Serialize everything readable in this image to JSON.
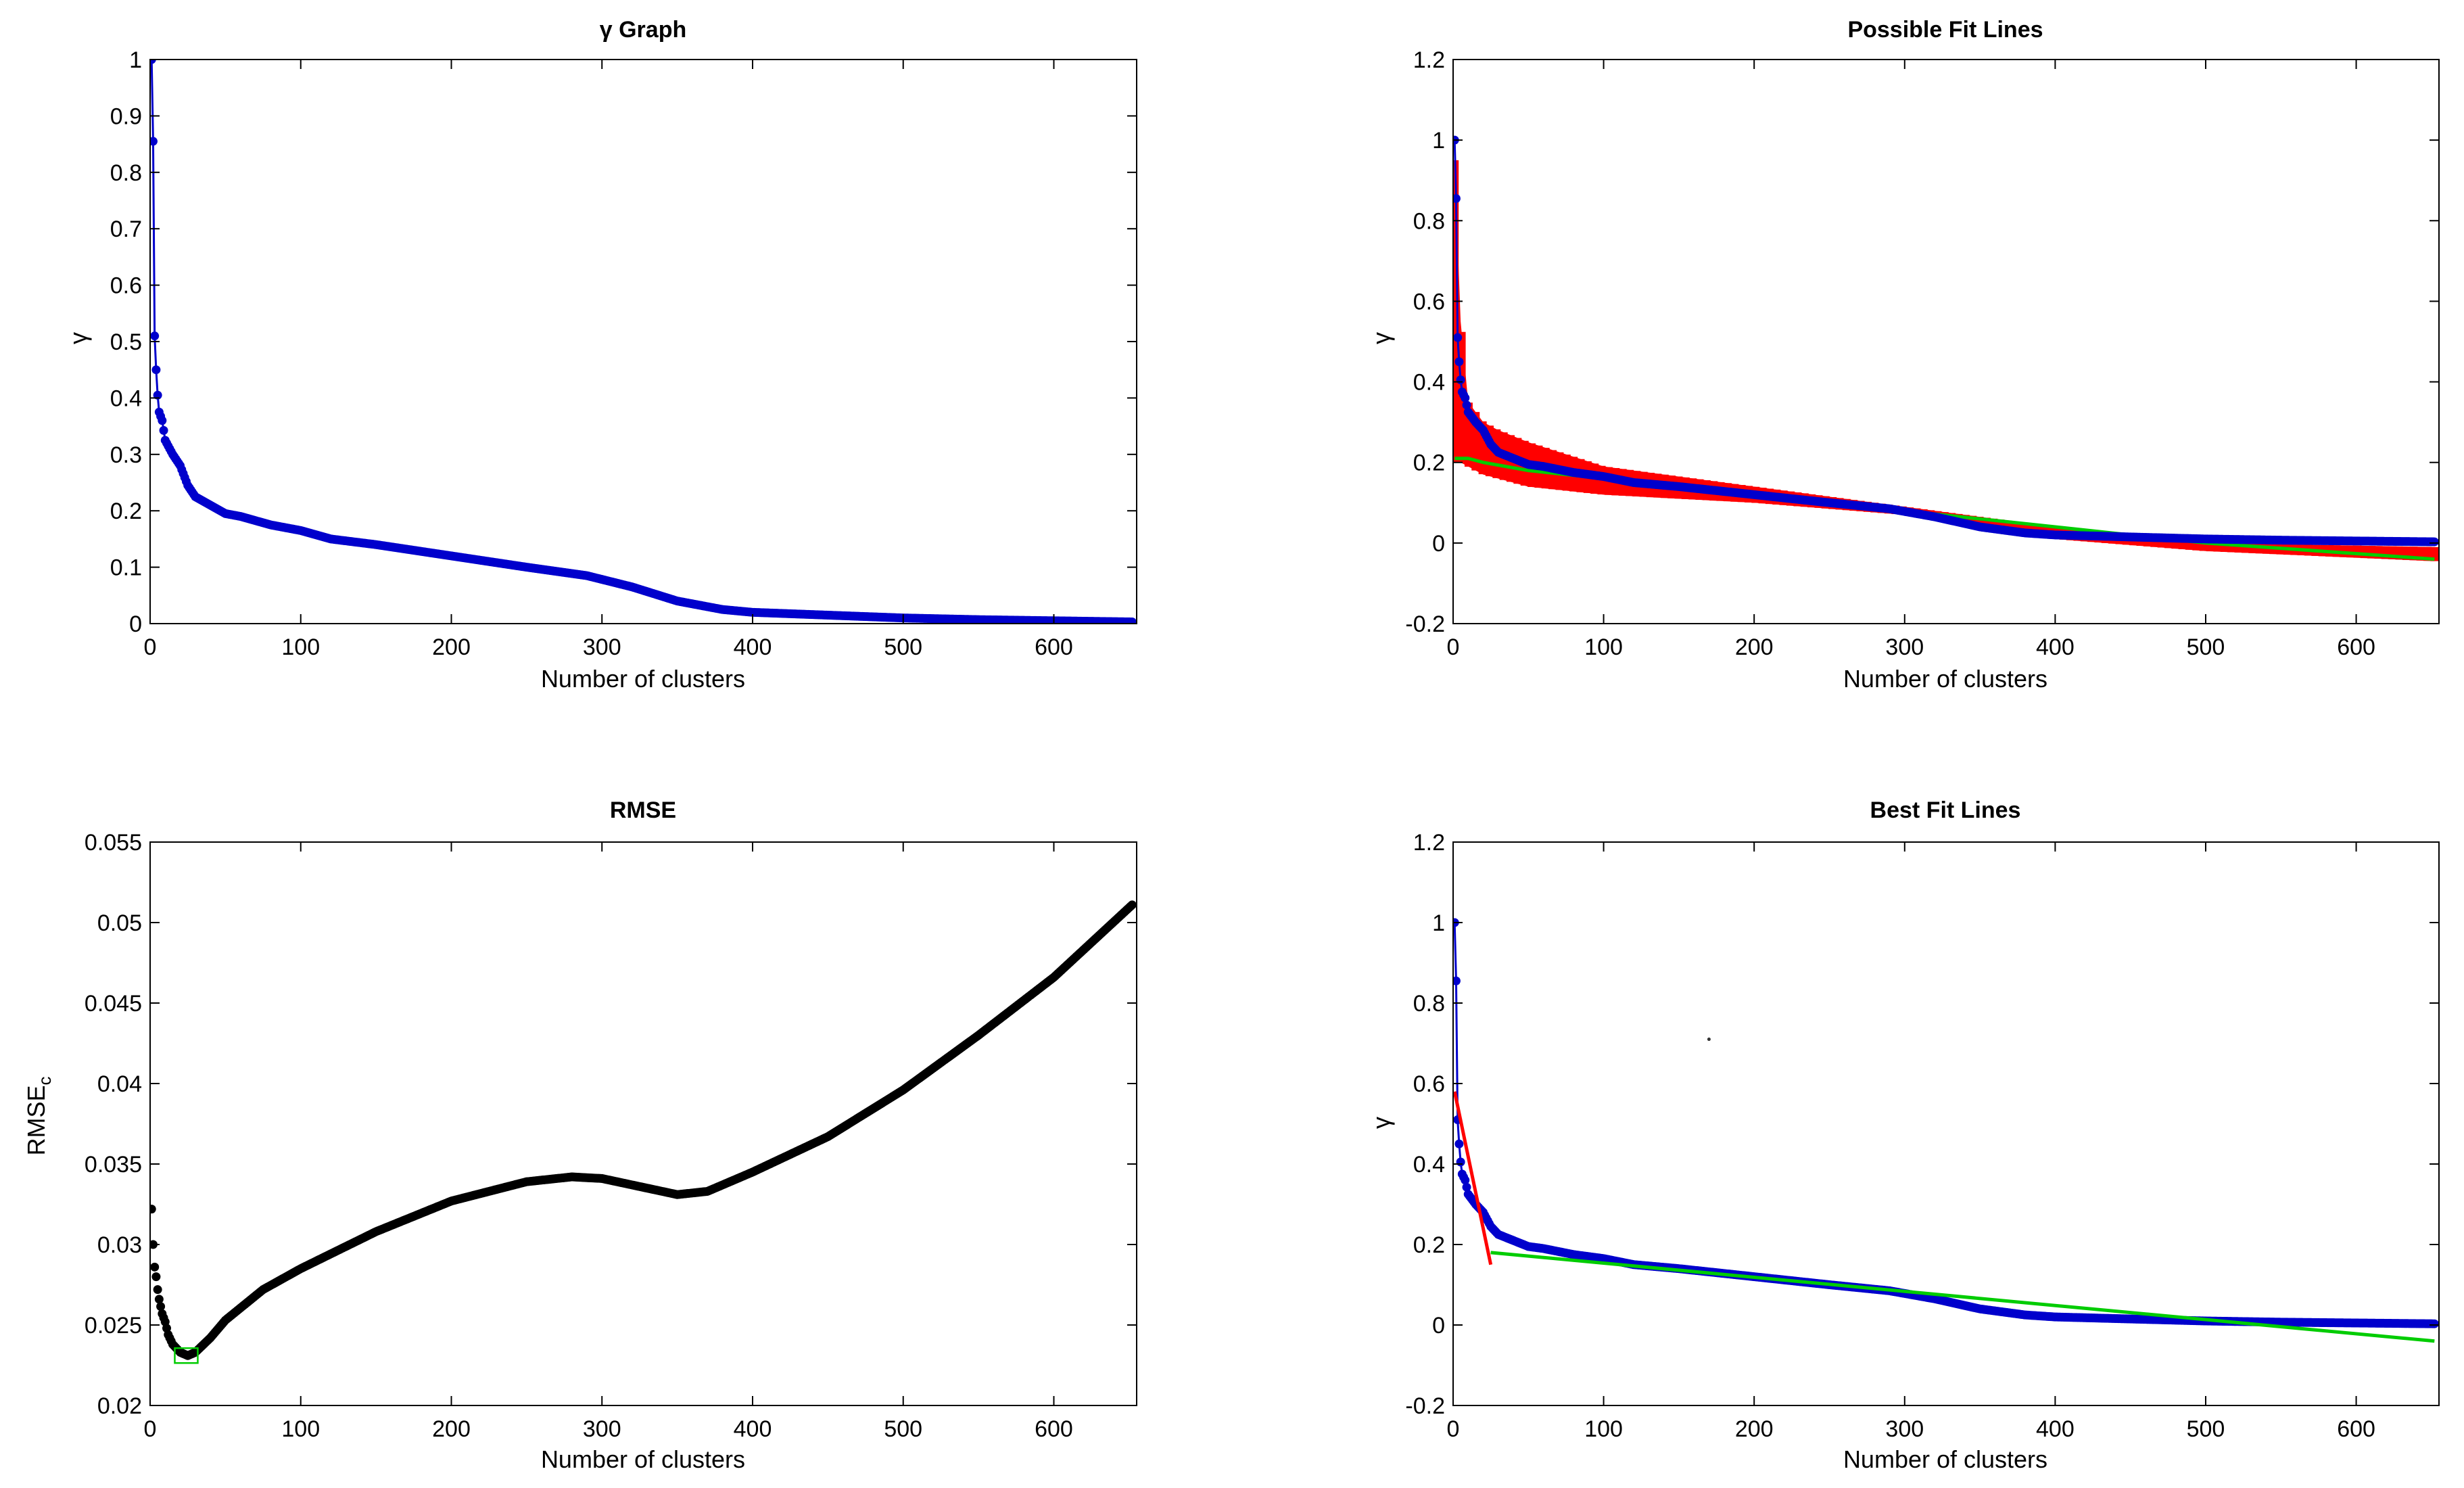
{
  "figure": {
    "background": "#ffffff",
    "axis_color": "#000000"
  },
  "chart_data": [
    {
      "type": "scatter",
      "title": "γ Graph",
      "xlabel": "Number of clusters",
      "ylabel": "γ",
      "xlim": [
        0,
        655
      ],
      "ylim": [
        0,
        1
      ],
      "xticks": [
        0,
        100,
        200,
        300,
        400,
        500,
        600
      ],
      "yticks": [
        0,
        0.1,
        0.2,
        0.3,
        0.4,
        0.5,
        0.6,
        0.7,
        0.8,
        0.9,
        1
      ],
      "grid": false,
      "series": [
        {
          "name": "γ",
          "kind": "line-markers",
          "color": "#0000cc",
          "dense": true,
          "x": [
            1,
            2,
            3,
            4,
            5,
            6,
            8,
            10,
            12,
            15,
            20,
            25,
            30,
            40,
            50,
            60,
            80,
            100,
            120,
            150,
            200,
            250,
            290,
            320,
            350,
            380,
            400,
            450,
            500,
            550,
            600,
            652
          ],
          "y": [
            1.0,
            0.855,
            0.51,
            0.45,
            0.405,
            0.375,
            0.36,
            0.325,
            0.315,
            0.3,
            0.28,
            0.245,
            0.225,
            0.21,
            0.195,
            0.19,
            0.175,
            0.165,
            0.15,
            0.14,
            0.12,
            0.1,
            0.085,
            0.065,
            0.04,
            0.025,
            0.02,
            0.015,
            0.01,
            0.007,
            0.005,
            0.003
          ]
        }
      ]
    },
    {
      "type": "line",
      "title": "Possible Fit Lines",
      "xlabel": "Number of clusters",
      "ylabel": "γ",
      "xlim": [
        0,
        655
      ],
      "ylim": [
        -0.2,
        1.2
      ],
      "xticks": [
        0,
        100,
        200,
        300,
        400,
        500,
        600
      ],
      "yticks": [
        -0.2,
        0,
        0.2,
        0.4,
        0.6,
        0.8,
        1,
        1.2
      ],
      "grid": false,
      "series": [
        {
          "name": "fit lines band",
          "kind": "band",
          "color": "#ff0000",
          "x": [
            1,
            5,
            10,
            20,
            30,
            50,
            100,
            200,
            300,
            400,
            500,
            652
          ],
          "upper": [
            0.95,
            0.55,
            0.35,
            0.3,
            0.28,
            0.25,
            0.19,
            0.14,
            0.09,
            0.04,
            0.0,
            -0.01
          ],
          "lower": [
            0.2,
            0.2,
            0.19,
            0.17,
            0.16,
            0.14,
            0.12,
            0.1,
            0.07,
            0.01,
            -0.02,
            -0.045
          ]
        },
        {
          "name": "fit line green",
          "kind": "line",
          "color": "#00cc00",
          "x": [
            1,
            10,
            20,
            50,
            100,
            200,
            300,
            400,
            500,
            652
          ],
          "y": [
            0.21,
            0.21,
            0.2,
            0.18,
            0.16,
            0.12,
            0.08,
            0.04,
            0.0,
            -0.04
          ]
        },
        {
          "name": "γ",
          "kind": "line-markers",
          "color": "#0000cc",
          "dense": true,
          "x": [
            1,
            2,
            3,
            4,
            5,
            6,
            8,
            10,
            12,
            15,
            20,
            25,
            30,
            40,
            50,
            60,
            80,
            100,
            120,
            150,
            200,
            250,
            290,
            320,
            350,
            380,
            400,
            450,
            500,
            550,
            600,
            652
          ],
          "y": [
            1.0,
            0.855,
            0.51,
            0.45,
            0.405,
            0.375,
            0.36,
            0.325,
            0.315,
            0.3,
            0.28,
            0.245,
            0.225,
            0.21,
            0.195,
            0.19,
            0.175,
            0.165,
            0.15,
            0.14,
            0.12,
            0.1,
            0.085,
            0.065,
            0.04,
            0.025,
            0.02,
            0.015,
            0.01,
            0.007,
            0.005,
            0.003
          ]
        }
      ]
    },
    {
      "type": "scatter",
      "title": "RMSE",
      "xlabel": "Number of clusters",
      "ylabel": "RMSE",
      "ylabel_sub": "c",
      "xlim": [
        0,
        655
      ],
      "ylim": [
        0.02,
        0.055
      ],
      "xticks": [
        0,
        100,
        200,
        300,
        400,
        500,
        600
      ],
      "yticks": [
        0.02,
        0.025,
        0.03,
        0.035,
        0.04,
        0.045,
        0.05,
        0.055
      ],
      "grid": false,
      "series": [
        {
          "name": "RMSE_c",
          "kind": "markers",
          "color": "#000000",
          "dense": true,
          "x": [
            1,
            2,
            3,
            4,
            5,
            6,
            8,
            10,
            12,
            15,
            20,
            25,
            30,
            40,
            50,
            75,
            100,
            150,
            200,
            250,
            280,
            300,
            330,
            350,
            370,
            400,
            450,
            500,
            550,
            600,
            652
          ],
          "y": [
            0.0322,
            0.03,
            0.0286,
            0.028,
            0.0272,
            0.0266,
            0.0257,
            0.0252,
            0.0244,
            0.0238,
            0.0233,
            0.0231,
            0.0233,
            0.0242,
            0.0253,
            0.0272,
            0.0285,
            0.0308,
            0.0327,
            0.0339,
            0.0342,
            0.0341,
            0.0335,
            0.0331,
            0.0333,
            0.0345,
            0.0367,
            0.0396,
            0.043,
            0.0466,
            0.0511
          ]
        },
        {
          "name": "minimum",
          "kind": "square",
          "color": "#00cc00",
          "x": [
            24
          ],
          "y": [
            0.0231
          ]
        }
      ]
    },
    {
      "type": "line",
      "title": "Best Fit Lines",
      "xlabel": "Number of clusters",
      "ylabel": "γ",
      "xlim": [
        0,
        655
      ],
      "ylim": [
        -0.2,
        1.2
      ],
      "xticks": [
        0,
        100,
        200,
        300,
        400,
        500,
        600
      ],
      "yticks": [
        -0.2,
        0,
        0.2,
        0.4,
        0.6,
        0.8,
        1,
        1.2
      ],
      "grid": false,
      "series": [
        {
          "name": "γ",
          "kind": "line-markers",
          "color": "#0000cc",
          "dense": true,
          "x": [
            1,
            2,
            3,
            4,
            5,
            6,
            8,
            10,
            12,
            15,
            20,
            25,
            30,
            40,
            50,
            60,
            80,
            100,
            120,
            150,
            200,
            250,
            290,
            320,
            350,
            380,
            400,
            450,
            500,
            550,
            600,
            652
          ],
          "y": [
            1.0,
            0.855,
            0.51,
            0.45,
            0.405,
            0.375,
            0.36,
            0.325,
            0.315,
            0.3,
            0.28,
            0.245,
            0.225,
            0.21,
            0.195,
            0.19,
            0.175,
            0.165,
            0.15,
            0.14,
            0.12,
            0.1,
            0.085,
            0.065,
            0.04,
            0.025,
            0.02,
            0.015,
            0.01,
            0.007,
            0.005,
            0.003
          ]
        },
        {
          "name": "best fit 1",
          "kind": "line",
          "color": "#ff0000",
          "x": [
            1,
            25
          ],
          "y": [
            0.58,
            0.15
          ]
        },
        {
          "name": "best fit 2",
          "kind": "line",
          "color": "#00cc00",
          "x": [
            25,
            652
          ],
          "y": [
            0.18,
            -0.04
          ]
        },
        {
          "name": "stray point",
          "kind": "dot",
          "color": "#333333",
          "x": [
            170
          ],
          "y": [
            0.71
          ]
        }
      ]
    }
  ]
}
